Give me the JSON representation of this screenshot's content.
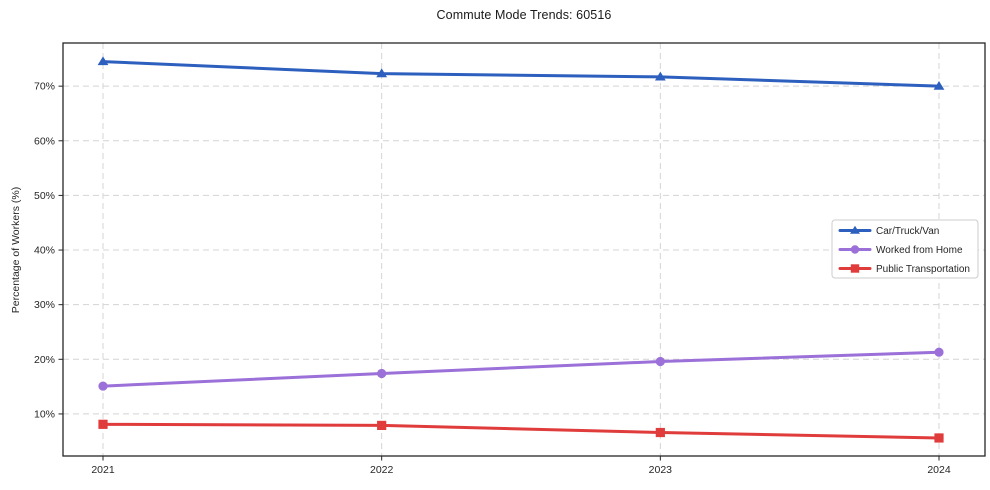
{
  "title": "Commute Mode Trends: 60516",
  "chart_data": {
    "type": "line",
    "title": "Commute Mode Trends: 60516",
    "xlabel": "",
    "ylabel": "Percentage of Workers (%)",
    "categories": [
      "2021",
      "2022",
      "2023",
      "2024"
    ],
    "series": [
      {
        "name": "Car/Truck/Van",
        "marker": "triangle",
        "color": "#2d5fbe",
        "values": [
          74.5,
          72.3,
          71.7,
          70.0
        ]
      },
      {
        "name": "Worked from Home",
        "marker": "circle",
        "color": "#9b70d8",
        "values": [
          15.1,
          17.4,
          19.6,
          21.3
        ]
      },
      {
        "name": "Public Transportation",
        "marker": "square",
        "color": "#e03c3c",
        "values": [
          8.1,
          7.9,
          6.6,
          5.6
        ]
      }
    ],
    "ylim": [
      2.3,
      77.9
    ],
    "yticks": [
      10,
      20,
      30,
      40,
      50,
      60,
      70
    ],
    "ytick_suffix": "%",
    "grid": true,
    "grid_style": "dashed",
    "legend_position": "right-center",
    "colors": {
      "grid": "#d4d4d4",
      "spine": "#262626",
      "legend_border": "#cccccc",
      "legend_bg": "#ffffff",
      "text": "#262626"
    }
  }
}
